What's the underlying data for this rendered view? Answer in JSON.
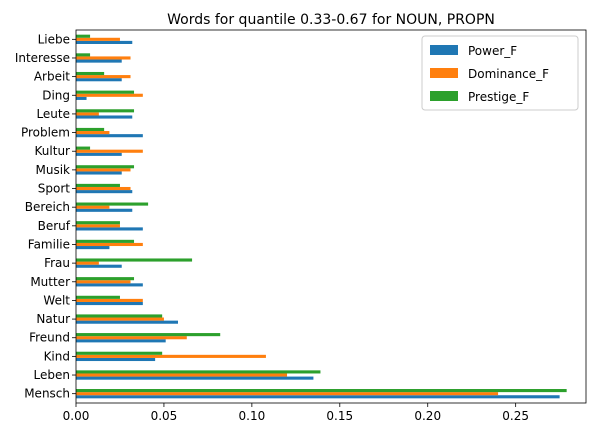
{
  "chart_data": {
    "type": "bar",
    "orientation": "horizontal",
    "title": "Words for quantile 0.33-0.67 for NOUN, PROPN",
    "xlabel": "",
    "ylabel": "",
    "xlim": [
      0,
      0.29
    ],
    "xticks": [
      0.0,
      0.05,
      0.1,
      0.15,
      0.2,
      0.25
    ],
    "xtick_labels": [
      "0.00",
      "0.05",
      "0.10",
      "0.15",
      "0.20",
      "0.25"
    ],
    "grid": false,
    "legend_position": "top-right",
    "categories": [
      "Liebe",
      "Interesse",
      "Arbeit",
      "Ding",
      "Leute",
      "Problem",
      "Kultur",
      "Musik",
      "Sport",
      "Bereich",
      "Beruf",
      "Familie",
      "Frau",
      "Mutter",
      "Welt",
      "Natur",
      "Freund",
      "Kind",
      "Leben",
      "Mensch"
    ],
    "series": [
      {
        "name": "Power_F",
        "color": "#1f77b4",
        "values": [
          0.032,
          0.026,
          0.026,
          0.006,
          0.032,
          0.038,
          0.026,
          0.026,
          0.032,
          0.032,
          0.038,
          0.019,
          0.026,
          0.038,
          0.038,
          0.058,
          0.051,
          0.045,
          0.135,
          0.275
        ]
      },
      {
        "name": "Dominance_F",
        "color": "#ff7f0e",
        "values": [
          0.025,
          0.031,
          0.031,
          0.038,
          0.013,
          0.019,
          0.038,
          0.031,
          0.031,
          0.019,
          0.025,
          0.038,
          0.013,
          0.031,
          0.038,
          0.05,
          0.063,
          0.108,
          0.12,
          0.24
        ]
      },
      {
        "name": "Prestige_F",
        "color": "#2ca02c",
        "values": [
          0.008,
          0.008,
          0.016,
          0.033,
          0.033,
          0.016,
          0.008,
          0.033,
          0.025,
          0.041,
          0.025,
          0.033,
          0.066,
          0.033,
          0.025,
          0.049,
          0.082,
          0.049,
          0.139,
          0.279
        ]
      }
    ]
  }
}
